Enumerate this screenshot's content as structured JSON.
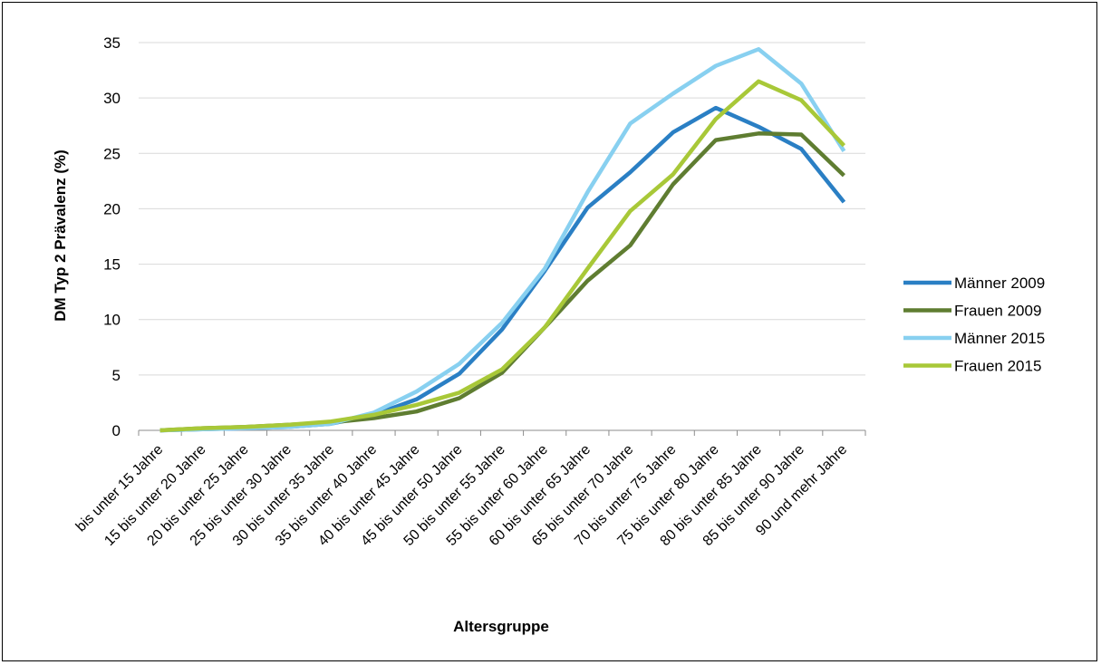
{
  "chart_data": {
    "type": "line",
    "title": "",
    "xlabel": "Altersgruppe",
    "ylabel": "DM Typ 2 Prävalenz (%)",
    "ylim": [
      0,
      35
    ],
    "yticks": [
      "0",
      "5",
      "10",
      "15",
      "20",
      "25",
      "30",
      "35"
    ],
    "grid": "horizontal",
    "legend_position": "right",
    "categories": [
      "bis unter 15 Jahre",
      "15 bis unter 20 Jahre",
      "20 bis unter 25 Jahre",
      "25 bis unter 30 Jahre",
      "30 bis unter 35 Jahre",
      "35 bis unter 40 Jahre",
      "40 bis unter 45 Jahre",
      "45 bis unter 50 Jahre",
      "50 bis unter 55 Jahre",
      "55 bis unter 60 Jahre",
      "60 bis unter 65 Jahre",
      "65 bis unter 70 Jahre",
      "70 bis unter 75 Jahre",
      "75 bis unter 80 Jahre",
      "80 bis unter 85 Jahre",
      "85 bis unter 90 Jahre",
      "90 und mehr Jahre"
    ],
    "series": [
      {
        "name": "Männer 2009",
        "color": "#2a7fc4",
        "values": [
          0.0,
          0.1,
          0.2,
          0.3,
          0.6,
          1.4,
          2.8,
          5.1,
          9.1,
          14.4,
          20.1,
          23.3,
          26.9,
          29.1,
          27.4,
          25.4,
          20.6
        ]
      },
      {
        "name": "Frauen 2009",
        "color": "#5f7d31",
        "values": [
          0.0,
          0.2,
          0.3,
          0.5,
          0.7,
          1.1,
          1.7,
          2.9,
          5.2,
          9.3,
          13.5,
          16.7,
          22.2,
          26.2,
          26.8,
          26.7,
          23.0
        ]
      },
      {
        "name": "Männer 2015",
        "color": "#88d0f0",
        "values": [
          0.0,
          0.1,
          0.2,
          0.3,
          0.6,
          1.6,
          3.5,
          6.0,
          9.7,
          14.6,
          21.5,
          27.7,
          30.4,
          32.9,
          34.4,
          31.3,
          25.2
        ]
      },
      {
        "name": "Frauen 2015",
        "color": "#a8c838",
        "values": [
          0.0,
          0.2,
          0.3,
          0.5,
          0.8,
          1.4,
          2.3,
          3.4,
          5.5,
          9.3,
          14.6,
          19.8,
          23.1,
          28.1,
          31.5,
          29.8,
          25.7
        ]
      }
    ]
  }
}
